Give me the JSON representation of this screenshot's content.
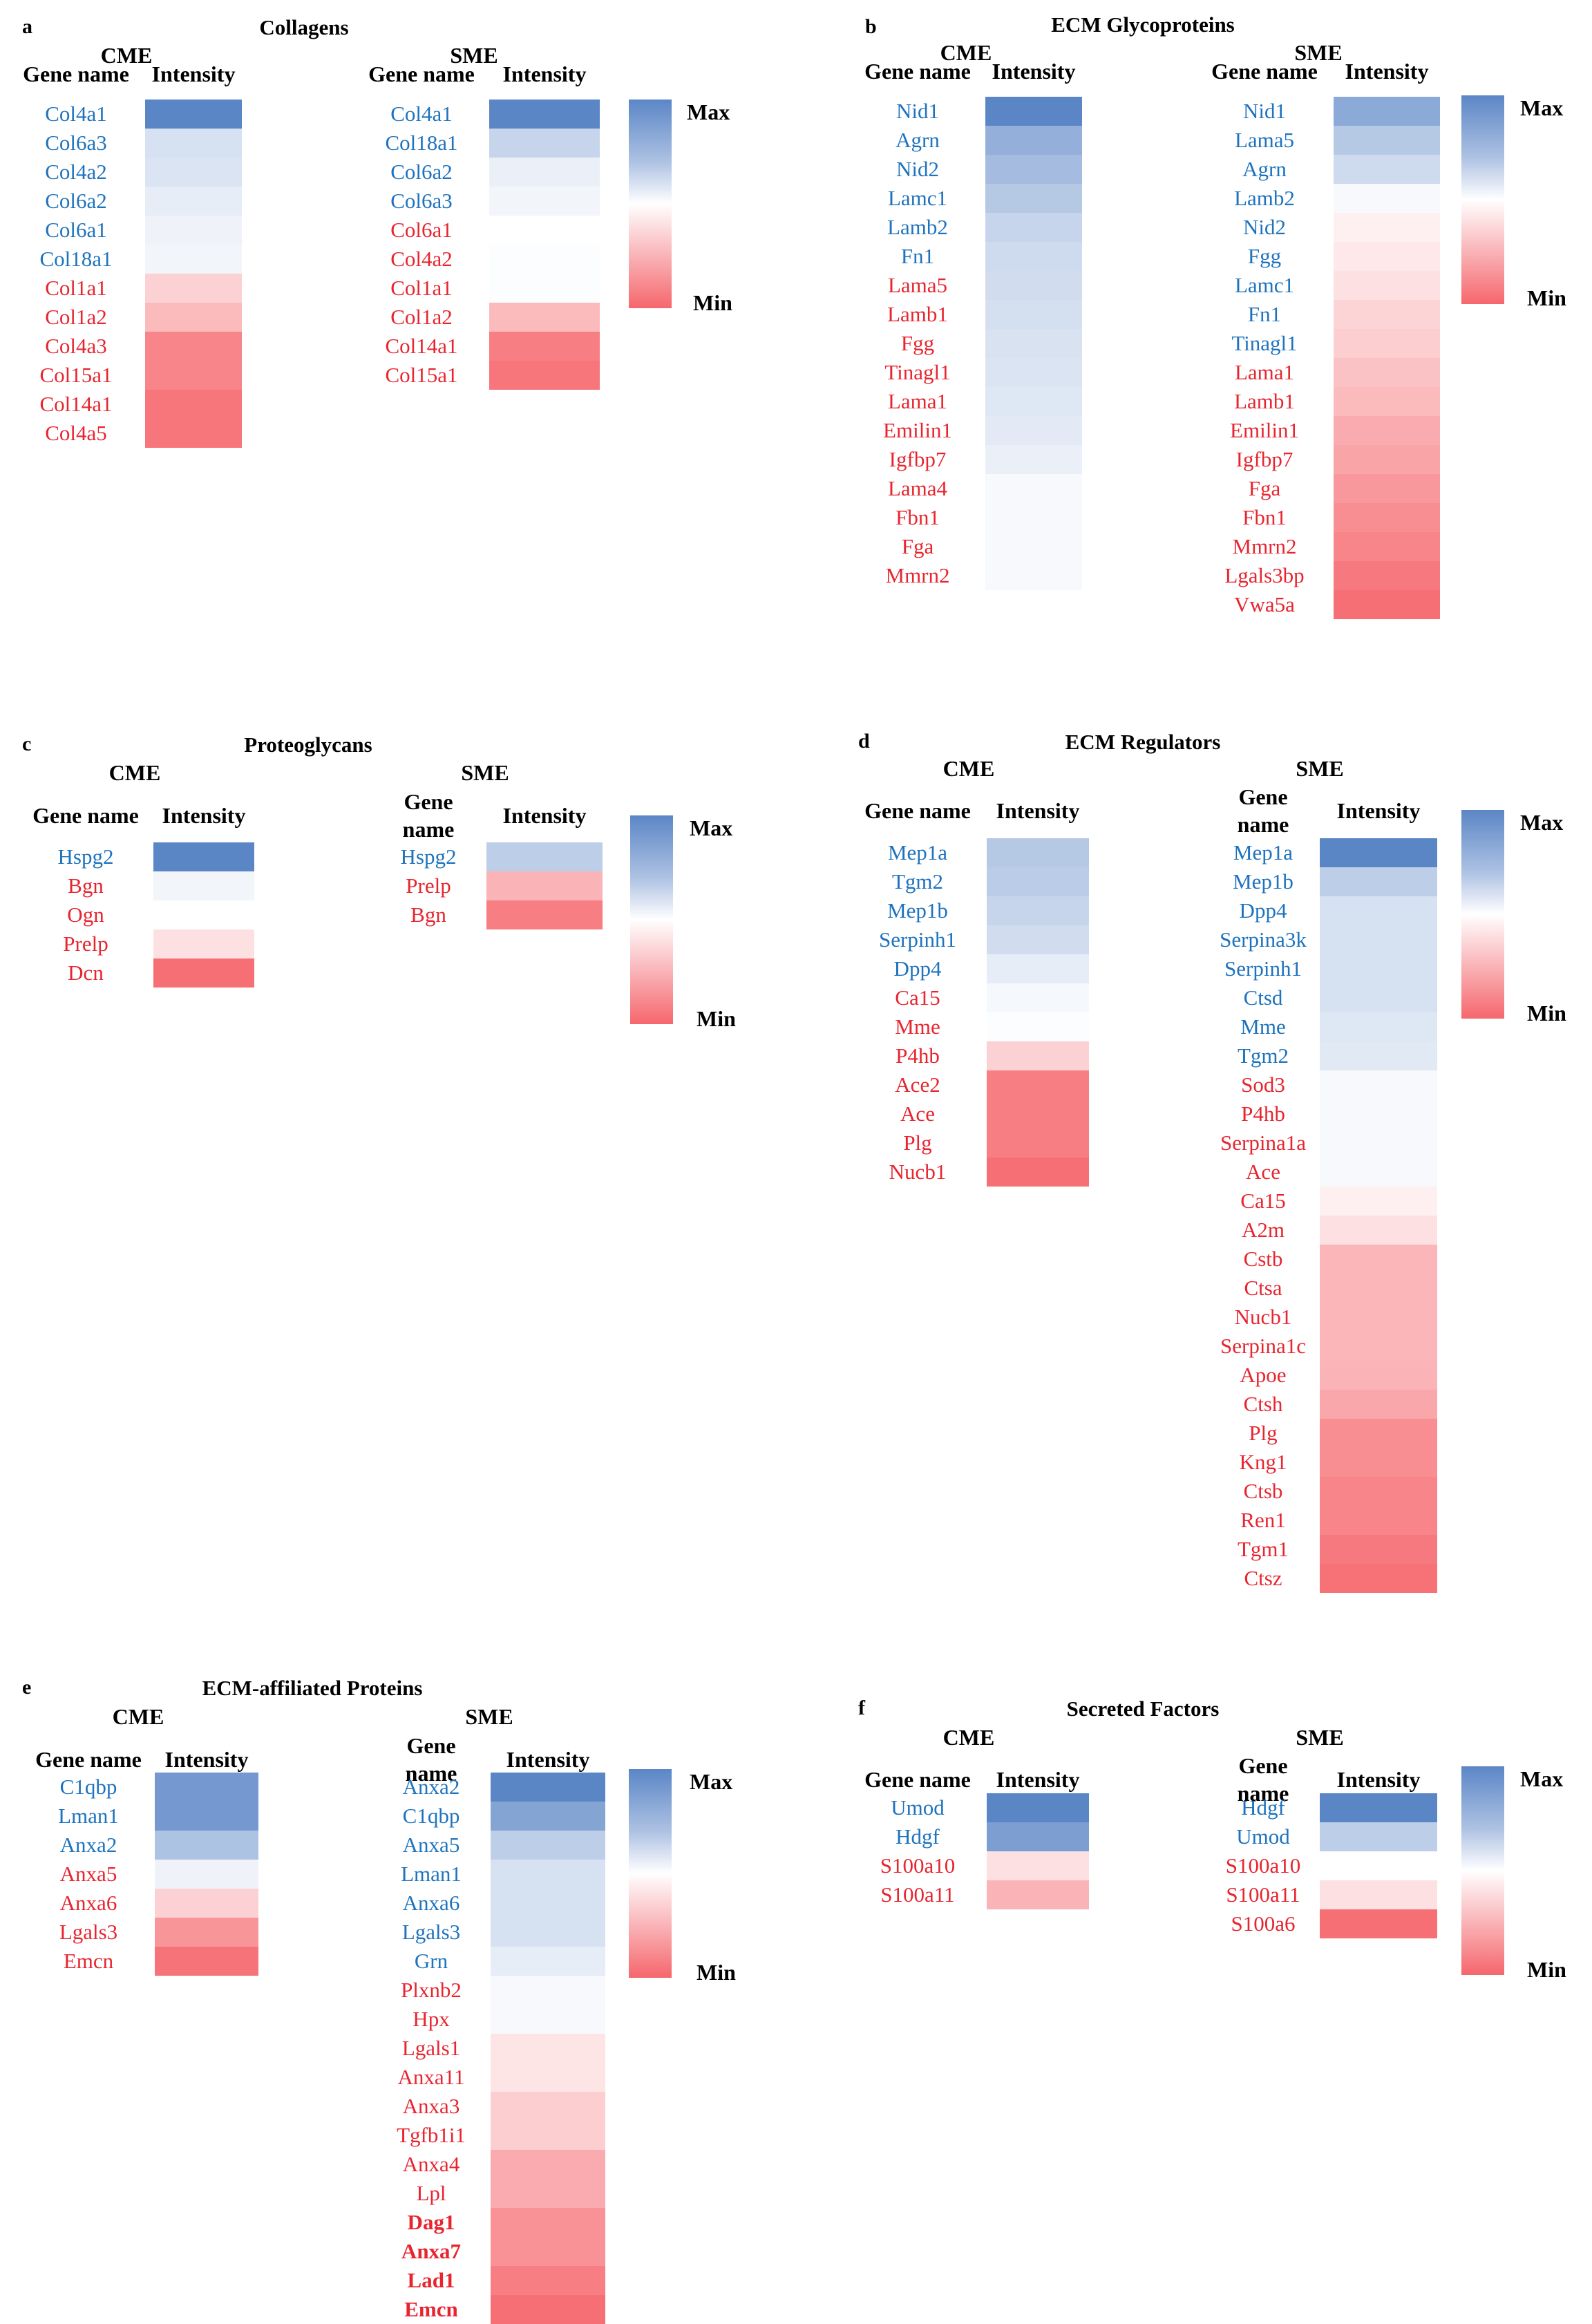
{
  "chart_data": [
    {
      "type": "heatmap",
      "panel": "a",
      "title": "Collagens",
      "header_gene": "Gene name",
      "header_intensity": "Intensity",
      "legend": {
        "max": "Max",
        "min": "Min"
      },
      "groups": [
        {
          "name": "CME",
          "genes": [
            {
              "name": "Col4a1",
              "dir": "up",
              "value": 1.0
            },
            {
              "name": "Col6a3",
              "dir": "up",
              "value": 0.25
            },
            {
              "name": "Col4a2",
              "dir": "up",
              "value": 0.22
            },
            {
              "name": "Col6a2",
              "dir": "up",
              "value": 0.15
            },
            {
              "name": "Col6a1",
              "dir": "up",
              "value": 0.1
            },
            {
              "name": "Col18a1",
              "dir": "up",
              "value": 0.08
            },
            {
              "name": "Col1a1",
              "dir": "down",
              "value": -0.3
            },
            {
              "name": "Col1a2",
              "dir": "down",
              "value": -0.45
            },
            {
              "name": "Col4a3",
              "dir": "down",
              "value": -0.8
            },
            {
              "name": "Col15a1",
              "dir": "down",
              "value": -0.8
            },
            {
              "name": "Col14a1",
              "dir": "down",
              "value": -0.9
            },
            {
              "name": "Col4a5",
              "dir": "down",
              "value": -0.9
            }
          ]
        },
        {
          "name": "SME",
          "genes": [
            {
              "name": "Col4a1",
              "dir": "up",
              "value": 1.0
            },
            {
              "name": "Col18a1",
              "dir": "up",
              "value": 0.35
            },
            {
              "name": "Col6a2",
              "dir": "up",
              "value": 0.12
            },
            {
              "name": "Col6a3",
              "dir": "up",
              "value": 0.08
            },
            {
              "name": "Col6a1",
              "dir": "down",
              "value": 0.0
            },
            {
              "name": "Col4a2",
              "dir": "down",
              "value": 0.02
            },
            {
              "name": "Col1a1",
              "dir": "down",
              "value": 0.02
            },
            {
              "name": "Col1a2",
              "dir": "down",
              "value": -0.45
            },
            {
              "name": "Col14a1",
              "dir": "down",
              "value": -0.85
            },
            {
              "name": "Col15a1",
              "dir": "down",
              "value": -0.9
            }
          ]
        }
      ]
    },
    {
      "type": "heatmap",
      "panel": "b",
      "title": "ECM Glycoproteins",
      "header_gene": "Gene name",
      "header_intensity": "Intensity",
      "legend": {
        "max": "Max",
        "min": "Min"
      },
      "groups": [
        {
          "name": "CME",
          "genes": [
            {
              "name": "Nid1",
              "dir": "up",
              "value": 1.0
            },
            {
              "name": "Agrn",
              "dir": "up",
              "value": 0.65
            },
            {
              "name": "Nid2",
              "dir": "up",
              "value": 0.55
            },
            {
              "name": "Lamc1",
              "dir": "up",
              "value": 0.45
            },
            {
              "name": "Lamb2",
              "dir": "up",
              "value": 0.35
            },
            {
              "name": "Fn1",
              "dir": "up",
              "value": 0.3
            },
            {
              "name": "Lama5",
              "dir": "down",
              "value": 0.28
            },
            {
              "name": "Lamb1",
              "dir": "down",
              "value": 0.26
            },
            {
              "name": "Fgg",
              "dir": "down",
              "value": 0.24
            },
            {
              "name": "Tinagl1",
              "dir": "down",
              "value": 0.22
            },
            {
              "name": "Lama1",
              "dir": "down",
              "value": 0.2
            },
            {
              "name": "Emilin1",
              "dir": "down",
              "value": 0.17
            },
            {
              "name": "Igfbp7",
              "dir": "down",
              "value": 0.13
            },
            {
              "name": "Lama4",
              "dir": "down",
              "value": 0.05
            },
            {
              "name": "Fbn1",
              "dir": "down",
              "value": 0.05
            },
            {
              "name": "Fga",
              "dir": "down",
              "value": 0.05
            },
            {
              "name": "Mmrn2",
              "dir": "down",
              "value": 0.05
            }
          ]
        },
        {
          "name": "SME",
          "genes": [
            {
              "name": "Nid1",
              "dir": "up",
              "value": 0.7
            },
            {
              "name": "Lama5",
              "dir": "up",
              "value": 0.45
            },
            {
              "name": "Agrn",
              "dir": "up",
              "value": 0.3
            },
            {
              "name": "Lamb2",
              "dir": "up",
              "value": 0.05
            },
            {
              "name": "Nid2",
              "dir": "up",
              "value": -0.1
            },
            {
              "name": "Fgg",
              "dir": "up",
              "value": -0.15
            },
            {
              "name": "Lamc1",
              "dir": "up",
              "value": -0.2
            },
            {
              "name": "Fn1",
              "dir": "up",
              "value": -0.28
            },
            {
              "name": "Tinagl1",
              "dir": "up",
              "value": -0.32
            },
            {
              "name": "Lama1",
              "dir": "down",
              "value": -0.4
            },
            {
              "name": "Lamb1",
              "dir": "down",
              "value": -0.45
            },
            {
              "name": "Emilin1",
              "dir": "down",
              "value": -0.55
            },
            {
              "name": "Igfbp7",
              "dir": "down",
              "value": -0.6
            },
            {
              "name": "Fga",
              "dir": "down",
              "value": -0.68
            },
            {
              "name": "Fbn1",
              "dir": "down",
              "value": -0.75
            },
            {
              "name": "Mmrn2",
              "dir": "down",
              "value": -0.8
            },
            {
              "name": "Lgals3bp",
              "dir": "down",
              "value": -0.88
            },
            {
              "name": "Vwa5a",
              "dir": "down",
              "value": -0.95
            }
          ]
        }
      ]
    },
    {
      "type": "heatmap",
      "panel": "c",
      "title": "Proteoglycans",
      "header_gene": "Gene name",
      "header_gene_sme": "Gene name",
      "header_intensity": "Intensity",
      "legend": {
        "max": "Max",
        "min": "Min"
      },
      "groups": [
        {
          "name": "CME",
          "genes": [
            {
              "name": "Hspg2",
              "dir": "up",
              "value": 1.0
            },
            {
              "name": "Bgn",
              "dir": "down",
              "value": 0.08
            },
            {
              "name": "Ogn",
              "dir": "down",
              "value": 0.0
            },
            {
              "name": "Prelp",
              "dir": "down",
              "value": -0.2
            },
            {
              "name": "Dcn",
              "dir": "down",
              "value": -0.95
            }
          ]
        },
        {
          "name": "SME",
          "genes": [
            {
              "name": "Hspg2",
              "dir": "up",
              "value": 0.4
            },
            {
              "name": "Prelp",
              "dir": "down",
              "value": -0.5
            },
            {
              "name": "Bgn",
              "dir": "down",
              "value": -0.85
            }
          ]
        }
      ]
    },
    {
      "type": "heatmap",
      "panel": "d",
      "title": "ECM Regulators",
      "header_gene": "Gene name",
      "header_gene_sme": "Gene name",
      "header_intensity": "Intensity",
      "legend": {
        "max": "Max",
        "min": "Min"
      },
      "groups": [
        {
          "name": "CME",
          "genes": [
            {
              "name": "Mep1a",
              "dir": "up",
              "value": 0.45
            },
            {
              "name": "Tgm2",
              "dir": "up",
              "value": 0.42
            },
            {
              "name": "Mep1b",
              "dir": "up",
              "value": 0.35
            },
            {
              "name": "Serpinh1",
              "dir": "up",
              "value": 0.28
            },
            {
              "name": "Dpp4",
              "dir": "up",
              "value": 0.15
            },
            {
              "name": "Ca15",
              "dir": "down",
              "value": 0.06
            },
            {
              "name": "Mme",
              "dir": "down",
              "value": 0.02
            },
            {
              "name": "P4hb",
              "dir": "down",
              "value": -0.3
            },
            {
              "name": "Ace2",
              "dir": "down",
              "value": -0.85
            },
            {
              "name": "Ace",
              "dir": "down",
              "value": -0.85
            },
            {
              "name": "Plg",
              "dir": "down",
              "value": -0.85
            },
            {
              "name": "Nucb1",
              "dir": "down",
              "value": -0.95
            }
          ]
        },
        {
          "name": "SME",
          "genes": [
            {
              "name": "Mep1a",
              "dir": "up",
              "value": 1.0
            },
            {
              "name": "Mep1b",
              "dir": "up",
              "value": 0.4
            },
            {
              "name": "Dpp4",
              "dir": "up",
              "value": 0.25
            },
            {
              "name": "Serpina3k",
              "dir": "up",
              "value": 0.25
            },
            {
              "name": "Serpinh1",
              "dir": "up",
              "value": 0.25
            },
            {
              "name": "Ctsd",
              "dir": "up",
              "value": 0.25
            },
            {
              "name": "Mme",
              "dir": "up",
              "value": 0.2
            },
            {
              "name": "Tgm2",
              "dir": "up",
              "value": 0.18
            },
            {
              "name": "Sod3",
              "dir": "down",
              "value": 0.05
            },
            {
              "name": "P4hb",
              "dir": "down",
              "value": 0.05
            },
            {
              "name": "Serpina1a",
              "dir": "down",
              "value": 0.05
            },
            {
              "name": "Ace",
              "dir": "down",
              "value": 0.05
            },
            {
              "name": "Ca15",
              "dir": "down",
              "value": -0.1
            },
            {
              "name": "A2m",
              "dir": "down",
              "value": -0.2
            },
            {
              "name": "Cstb",
              "dir": "down",
              "value": -0.48
            },
            {
              "name": "Ctsa",
              "dir": "down",
              "value": -0.48
            },
            {
              "name": "Nucb1",
              "dir": "down",
              "value": -0.48
            },
            {
              "name": "Serpina1c",
              "dir": "down",
              "value": -0.48
            },
            {
              "name": "Apoe",
              "dir": "down",
              "value": -0.5
            },
            {
              "name": "Ctsh",
              "dir": "down",
              "value": -0.58
            },
            {
              "name": "Plg",
              "dir": "down",
              "value": -0.75
            },
            {
              "name": "Kng1",
              "dir": "down",
              "value": -0.75
            },
            {
              "name": "Ctsb",
              "dir": "down",
              "value": -0.8
            },
            {
              "name": "Ren1",
              "dir": "down",
              "value": -0.8
            },
            {
              "name": "Tgm1",
              "dir": "down",
              "value": -0.88
            },
            {
              "name": "Ctsz",
              "dir": "down",
              "value": -0.93
            }
          ]
        }
      ]
    },
    {
      "type": "heatmap",
      "panel": "e",
      "title": "ECM-affiliated Proteins",
      "header_gene": "Gene name",
      "header_gene_sme": "Gene name",
      "header_intensity": "Intensity",
      "legend": {
        "max": "Max",
        "min": "Min"
      },
      "groups": [
        {
          "name": "CME",
          "genes": [
            {
              "name": "C1qbp",
              "dir": "up",
              "value": 0.85
            },
            {
              "name": "Lman1",
              "dir": "up",
              "value": 0.85
            },
            {
              "name": "Anxa2",
              "dir": "up",
              "value": 0.5
            },
            {
              "name": "Anxa5",
              "dir": "down",
              "value": 0.1
            },
            {
              "name": "Anxa6",
              "dir": "down",
              "value": -0.3
            },
            {
              "name": "Lgals3",
              "dir": "down",
              "value": -0.7
            },
            {
              "name": "Emcn",
              "dir": "down",
              "value": -0.92
            }
          ]
        },
        {
          "name": "SME",
          "genes": [
            {
              "name": "Anxa2",
              "dir": "up",
              "value": 1.0
            },
            {
              "name": "C1qbp",
              "dir": "up",
              "value": 0.75
            },
            {
              "name": "Anxa5",
              "dir": "up",
              "value": 0.4
            },
            {
              "name": "Lman1",
              "dir": "up",
              "value": 0.25
            },
            {
              "name": "Anxa6",
              "dir": "up",
              "value": 0.25
            },
            {
              "name": "Lgals3",
              "dir": "up",
              "value": 0.25
            },
            {
              "name": "Grn",
              "dir": "up",
              "value": 0.15
            },
            {
              "name": "Plxnb2",
              "dir": "down",
              "value": 0.05
            },
            {
              "name": "Hpx",
              "dir": "down",
              "value": 0.05
            },
            {
              "name": "Lgals1",
              "dir": "down",
              "value": -0.18
            },
            {
              "name": "Anxa11",
              "dir": "down",
              "value": -0.18
            },
            {
              "name": "Anxa3",
              "dir": "down",
              "value": -0.32
            },
            {
              "name": "Tgfb1i1",
              "dir": "down",
              "value": -0.32
            },
            {
              "name": "Anxa4",
              "dir": "down",
              "value": -0.55
            },
            {
              "name": "Lpl",
              "dir": "down",
              "value": -0.55
            },
            {
              "name": "Dag1",
              "dir": "down",
              "value": -0.72,
              "bold": true
            },
            {
              "name": "Anxa7",
              "dir": "down",
              "value": -0.72,
              "bold": true
            },
            {
              "name": "Lad1",
              "dir": "down",
              "value": -0.85,
              "bold": true
            },
            {
              "name": "Emcn",
              "dir": "down",
              "value": -0.95,
              "bold": true
            }
          ]
        }
      ]
    },
    {
      "type": "heatmap",
      "panel": "f",
      "title": "Secreted Factors",
      "header_gene": "Gene name",
      "header_gene_sme": "Gene name",
      "header_intensity": "Intensity",
      "legend": {
        "max": "Max",
        "min": "Min"
      },
      "groups": [
        {
          "name": "CME",
          "genes": [
            {
              "name": "Umod",
              "dir": "up",
              "value": 1.0
            },
            {
              "name": "Hdgf",
              "dir": "up",
              "value": 0.8
            },
            {
              "name": "S100a10",
              "dir": "down",
              "value": -0.2
            },
            {
              "name": "S100a11",
              "dir": "down",
              "value": -0.5
            }
          ]
        },
        {
          "name": "SME",
          "genes": [
            {
              "name": "Hdgf",
              "dir": "up",
              "value": 1.0
            },
            {
              "name": "Umod",
              "dir": "up",
              "value": 0.4
            },
            {
              "name": "S100a10",
              "dir": "down",
              "value": 0.0
            },
            {
              "name": "S100a11",
              "dir": "down",
              "value": -0.2
            },
            {
              "name": "S100a6",
              "dir": "down",
              "value": -0.95
            }
          ]
        }
      ]
    }
  ],
  "colors": {
    "up": "#1e73be",
    "down": "#e8252f",
    "max": "#5b86c6",
    "mid": "#ffffff",
    "min": "#f5676d"
  }
}
